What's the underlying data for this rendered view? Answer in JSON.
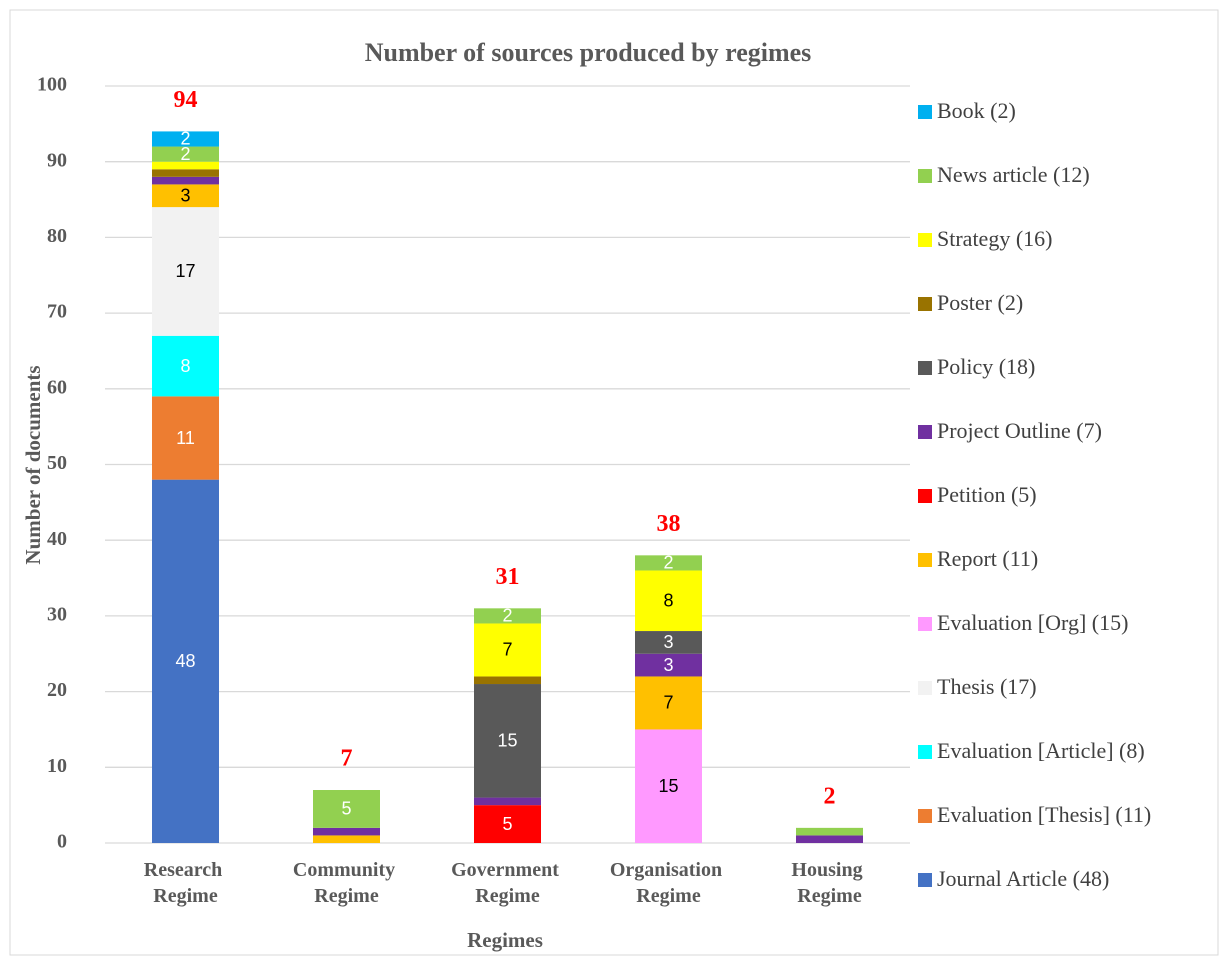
{
  "chart_data": {
    "type": "stacked_bar",
    "title": "Number of sources produced by regimes",
    "x_label": "Regimes",
    "y_label": "Number of documents",
    "categories": [
      "Research Regime",
      "Community Regime",
      "Government Regime",
      "Organisation Regime",
      "Housing Regime"
    ],
    "totals": [
      94,
      7,
      31,
      38,
      2
    ],
    "ylim": [
      0,
      100
    ],
    "yticks": [
      0,
      10,
      20,
      30,
      40,
      50,
      60,
      70,
      80,
      90,
      100
    ],
    "grid": true,
    "legend": "right",
    "series": [
      {
        "name": "Journal Article (48)",
        "color": "#4472c4",
        "values": [
          48,
          0,
          0,
          0,
          0
        ]
      },
      {
        "name": "Evaluation [Thesis] (11)",
        "color": "#ed7d31",
        "values": [
          11,
          0,
          0,
          0,
          0
        ]
      },
      {
        "name": "Evaluation [Article] (8)",
        "color": "#00ffff",
        "values": [
          8,
          0,
          0,
          0,
          0
        ]
      },
      {
        "name": "Thesis (17)",
        "color": "#f2f2f2",
        "values": [
          17,
          0,
          0,
          0,
          0
        ]
      },
      {
        "name": "Evaluation [Org] (15)",
        "color": "#ff99ff",
        "values": [
          0,
          0,
          0,
          15,
          0
        ]
      },
      {
        "name": "Report (11)",
        "color": "#ffc000",
        "values": [
          3,
          1,
          0,
          7,
          0
        ]
      },
      {
        "name": "Petition (5)",
        "color": "#ff0000",
        "values": [
          0,
          0,
          5,
          0,
          0
        ]
      },
      {
        "name": "Project Outline (7)",
        "color": "#7030a0",
        "values": [
          1,
          1,
          1,
          3,
          1
        ]
      },
      {
        "name": "Policy (18)",
        "color": "#595959",
        "values": [
          0,
          0,
          15,
          3,
          0
        ]
      },
      {
        "name": "Poster (2)",
        "color": "#997300",
        "values": [
          1,
          0,
          1,
          0,
          0
        ]
      },
      {
        "name": "Strategy (16)",
        "color": "#ffff00",
        "values": [
          1,
          0,
          7,
          8,
          0
        ]
      },
      {
        "name": "News article (12)",
        "color": "#92d050",
        "values": [
          2,
          5,
          2,
          2,
          1
        ]
      },
      {
        "name": "Book (2)",
        "color": "#00b0f0",
        "values": [
          2,
          0,
          0,
          0,
          0
        ]
      }
    ]
  }
}
